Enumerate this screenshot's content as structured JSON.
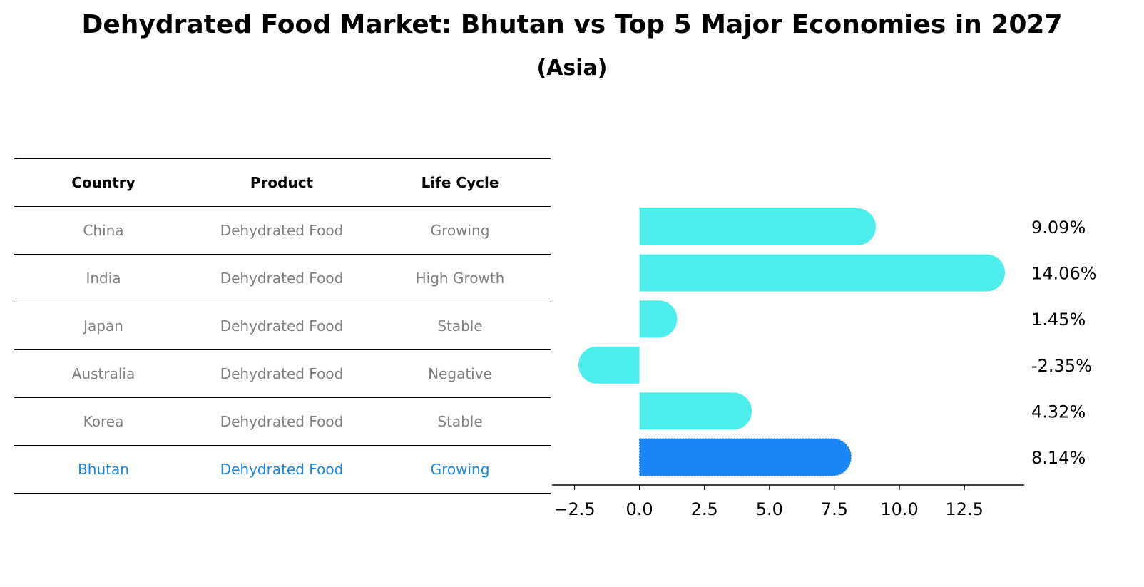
{
  "title": "Dehydrated Food Market: Bhutan vs Top 5 Major Economies in 2027",
  "subtitle": "(Asia)",
  "table": {
    "headers": [
      "Country",
      "Product",
      "Life Cycle"
    ],
    "rows": [
      [
        "China",
        "Dehydrated Food",
        "Growing"
      ],
      [
        "India",
        "Dehydrated Food",
        "High Growth"
      ],
      [
        "Japan",
        "Dehydrated Food",
        "Stable"
      ],
      [
        "Australia",
        "Dehydrated Food",
        "Negative"
      ],
      [
        "Korea",
        "Dehydrated Food",
        "Stable"
      ],
      [
        "Bhutan",
        "Dehydrated Food",
        "Growing"
      ]
    ],
    "highlight_row": "Bhutan"
  },
  "colors": {
    "bar": "#4dedeb",
    "highlight": "#1a86f5",
    "highlight_text": "#1a86e6",
    "muted_text": "#808080"
  },
  "chart_data": {
    "type": "bar",
    "orientation": "horizontal",
    "categories": [
      "China",
      "India",
      "Japan",
      "Australia",
      "Korea",
      "Bhutan"
    ],
    "values": [
      9.09,
      14.06,
      1.45,
      -2.35,
      4.32,
      8.14
    ],
    "value_labels": [
      "9.09%",
      "14.06%",
      "1.45%",
      "-2.35%",
      "4.32%",
      "8.14%"
    ],
    "xlim": [
      -3.2,
      14.8
    ],
    "xticks": [
      -2.5,
      0.0,
      2.5,
      5.0,
      7.5,
      10.0,
      12.5
    ],
    "xtick_labels": [
      "−2.5",
      "0.0",
      "2.5",
      "5.0",
      "7.5",
      "10.0",
      "12.5"
    ],
    "highlight": "Bhutan"
  }
}
